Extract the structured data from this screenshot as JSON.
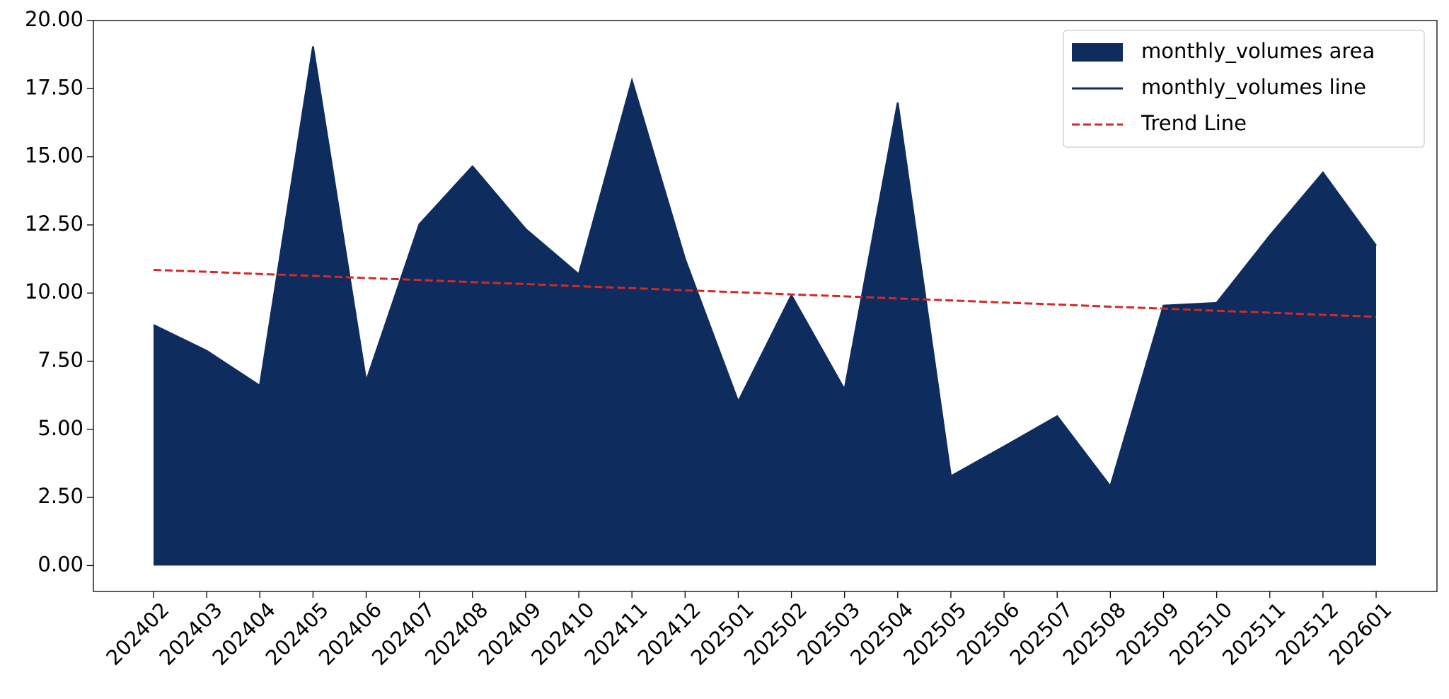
{
  "chart_data": {
    "type": "area",
    "categories": [
      "202402",
      "202403",
      "202404",
      "202405",
      "202406",
      "202407",
      "202408",
      "202409",
      "202410",
      "202411",
      "202412",
      "202501",
      "202502",
      "202503",
      "202504",
      "202505",
      "202506",
      "202507",
      "202508",
      "202509",
      "202510",
      "202511",
      "202512",
      "202601"
    ],
    "series": [
      {
        "name": "monthly_volumes area",
        "kind": "area",
        "color": "#0e2d5e",
        "values": [
          8.83,
          7.88,
          6.6,
          19.05,
          6.77,
          12.52,
          14.65,
          12.35,
          10.69,
          17.8,
          11.24,
          6.02,
          9.92,
          6.46,
          16.99,
          3.28,
          4.37,
          5.48,
          2.91,
          9.54,
          9.64,
          12.11,
          14.42,
          11.74
        ]
      },
      {
        "name": "monthly_volumes line",
        "kind": "line",
        "color": "#0e2d5e",
        "values": [
          8.83,
          7.88,
          6.6,
          19.05,
          6.77,
          12.52,
          14.65,
          12.35,
          10.69,
          17.8,
          11.24,
          6.02,
          9.92,
          6.46,
          16.99,
          3.28,
          4.37,
          5.48,
          2.91,
          9.54,
          9.64,
          12.11,
          14.42,
          11.74
        ]
      },
      {
        "name": "Trend Line",
        "kind": "dashed",
        "color": "#d62728",
        "values": [
          10.85,
          10.78,
          10.7,
          10.63,
          10.55,
          10.48,
          10.4,
          10.33,
          10.25,
          10.18,
          10.1,
          10.03,
          9.95,
          9.88,
          9.8,
          9.73,
          9.65,
          9.58,
          9.5,
          9.43,
          9.35,
          9.28,
          9.2,
          9.13
        ]
      }
    ],
    "ylim": [
      -0.95,
      20.0
    ],
    "yticks": [
      {
        "value": 0,
        "label": "0.00"
      },
      {
        "value": 2.5,
        "label": "2.50"
      },
      {
        "value": 5,
        "label": "5.00"
      },
      {
        "value": 7.5,
        "label": "7.50"
      },
      {
        "value": 10,
        "label": "10.00"
      },
      {
        "value": 12.5,
        "label": "12.50"
      },
      {
        "value": 15,
        "label": "15.00"
      },
      {
        "value": 17.5,
        "label": "17.50"
      },
      {
        "value": 20,
        "label": "20.00"
      }
    ],
    "grid": false,
    "legend": "upper right"
  }
}
